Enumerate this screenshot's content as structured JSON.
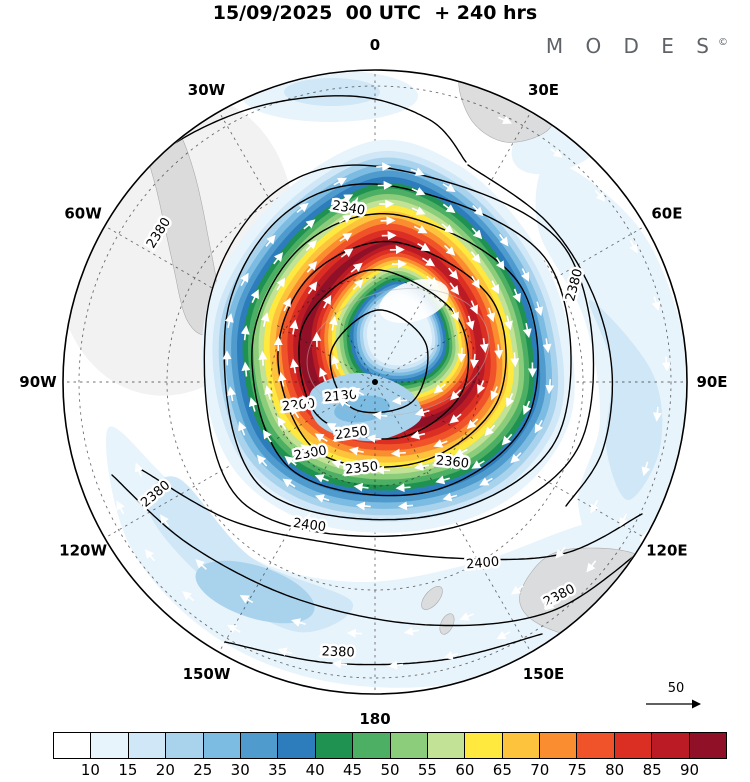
{
  "header": {
    "title": "15/09/2025  00 UTC  + 240 hrs",
    "brand": "M O D E S",
    "brand_mark": "©"
  },
  "map": {
    "compass_labels": [
      {
        "label": "0",
        "angle": 0
      },
      {
        "label": "30E",
        "angle": 30
      },
      {
        "label": "60E",
        "angle": 60
      },
      {
        "label": "90E",
        "angle": 90
      },
      {
        "label": "120E",
        "angle": 120
      },
      {
        "label": "150E",
        "angle": 150
      },
      {
        "label": "180",
        "angle": 180
      },
      {
        "label": "150W",
        "angle": 210
      },
      {
        "label": "120W",
        "angle": 240
      },
      {
        "label": "90W",
        "angle": 270
      },
      {
        "label": "60W",
        "angle": 300
      },
      {
        "label": "30W",
        "angle": 330
      }
    ],
    "contour_labels": [
      "2380",
      "2380",
      "2340",
      "2300",
      "2250",
      "2200",
      "2130",
      "2350",
      "2360",
      "2400",
      "2400",
      "2380",
      "2380",
      "2380"
    ],
    "wind_reference": {
      "label": "50"
    }
  },
  "colorbar": {
    "colors": [
      "#ffffff",
      "#e8f4fb",
      "#cfe7f6",
      "#a9d3ed",
      "#7cbbe2",
      "#4f9bce",
      "#2d7dbd",
      "#1f9251",
      "#4caf63",
      "#8ccd7c",
      "#c2e296",
      "#ffe93e",
      "#fdc33c",
      "#fb8d31",
      "#f0532a",
      "#dc2f24",
      "#bb1b24",
      "#901127"
    ],
    "tick_labels": [
      "10",
      "15",
      "20",
      "25",
      "30",
      "35",
      "40",
      "45",
      "50",
      "55",
      "60",
      "65",
      "70",
      "75",
      "80",
      "85",
      "90"
    ]
  },
  "chart_data": {
    "type": "heatmap",
    "title": "15/09/2025 00 UTC + 240 hrs",
    "projection": "polar stereographic (Southern Hemisphere, pole at center)",
    "shaded_variable": "wind speed",
    "shading_levels": [
      10,
      15,
      20,
      25,
      30,
      35,
      40,
      45,
      50,
      55,
      60,
      65,
      70,
      75,
      80,
      85,
      90
    ],
    "contour_variable": "geopotential height",
    "contour_values": [
      2130,
      2200,
      2250,
      2300,
      2340,
      2350,
      2360,
      2380,
      2400
    ],
    "vector_variable": "wind vectors (circumpolar, clockwise around vortex)",
    "reference_vector": 50,
    "meridians": [
      "0",
      "30E",
      "60E",
      "90E",
      "120E",
      "150E",
      "180",
      "150W",
      "120W",
      "90W",
      "60W",
      "30W"
    ],
    "valid_time": "15/09/2025 00 UTC",
    "forecast_lead_hours": 240,
    "legend_position": "bottom"
  }
}
